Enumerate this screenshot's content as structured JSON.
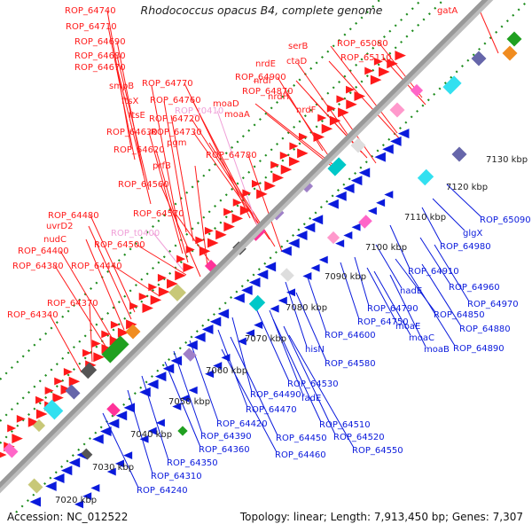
{
  "title": "Rhodococcus opacus B4, complete genome",
  "footer": {
    "accession": "Accession: NC_012522",
    "summary": "Topology: linear; Length: 7,913,450 bp; Genes: 7,307"
  },
  "colors": {
    "forward": "#ff1a1a",
    "reverse": "#0a1adc",
    "rna": "#f0a0d8",
    "axis": "#999999",
    "kbp_dots": "#1e8c1e"
  },
  "kbp_ticks": [
    "7020 kbp",
    "7030 kbp",
    "7040 kbp",
    "7050 kbp",
    "7060 kbp",
    "7070 kbp",
    "7080 kbp",
    "7090 kbp",
    "7100 kbp",
    "7110 kbp",
    "7120 kbp",
    "7130 kbp"
  ],
  "forward_labels": [
    "ROP_64740",
    "ROP_64710",
    "ROP_64690",
    "ROP_64680",
    "ROP_64670",
    "smpB",
    "ftsX",
    "ftsE",
    "ROP_64630",
    "ROP_64620",
    "prfB",
    "ROP_64560",
    "ROP_64480",
    "uvrD2",
    "nudC",
    "ROP_64400",
    "ROP_64380",
    "ROP_64370",
    "ROP_64340",
    "ROP_64770",
    "ROP_64760",
    "ROP_64720",
    "ROP_64730",
    "pgm",
    "ROP_64780",
    "ROP_64570",
    "ROP_64500",
    "ROP_64440",
    "ROP_64900",
    "ROP_64870",
    "moaD",
    "moaA",
    "nrdE",
    "nrdI",
    "nrdH",
    "nrdF",
    "serB",
    "ctaD",
    "ROP_65080",
    "ROP_65110",
    "gatA"
  ],
  "rna_labels": [
    "ROP_t0410",
    "ROP_t0400"
  ],
  "reverse_labels": [
    "ROP_65090",
    "glgX",
    "ROP_64980",
    "ROP_64910",
    "ROP_64960",
    "ROP_64970",
    "nadE",
    "ROP_64790",
    "ROP_64850",
    "ROP_64750",
    "ROP_64880",
    "moaE",
    "moaC",
    "ROP_64890",
    "moaB",
    "ROP_64600",
    "ROP_64580",
    "hisN",
    "ROP_64530",
    "ROP_64490",
    "fadE",
    "ROP_64470",
    "ROP_64510",
    "ROP_64420",
    "ROP_64520",
    "ROP_64390",
    "ROP_64450",
    "ROP_64360",
    "ROP_64460",
    "ROP_64550",
    "ROP_64350",
    "ROP_64310",
    "ROP_64240"
  ]
}
